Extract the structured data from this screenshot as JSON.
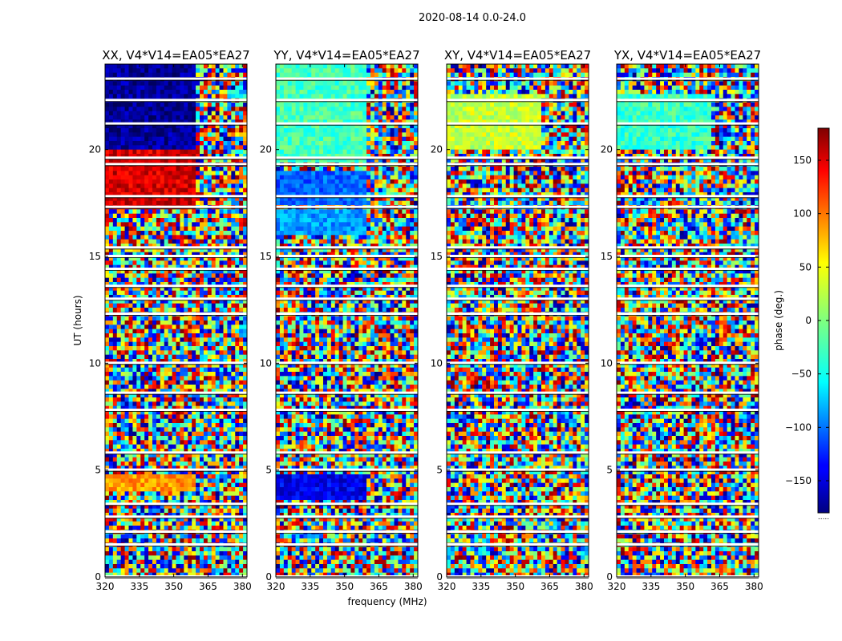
{
  "chart_data": {
    "type": "heatmap",
    "suptitle": "2020-08-14 0.0-24.0",
    "xlabel": "frequency (MHz)",
    "ylabel": "UT (hours)",
    "xlim": [
      320,
      382
    ],
    "ylim": [
      0,
      24
    ],
    "xticks": [
      320,
      335,
      350,
      365,
      380
    ],
    "xtick_labels": [
      "320",
      "335",
      "350",
      "365",
      "380"
    ],
    "yticks": [
      0,
      5,
      10,
      15,
      20
    ],
    "ytick_labels": [
      "0",
      "5",
      "10",
      "15",
      "20"
    ],
    "colorbar": {
      "label": "phase (deg.)",
      "range": [
        -180,
        180
      ],
      "ticks": [
        -150,
        -100,
        -50,
        0,
        50,
        100,
        150
      ],
      "tick_labels": [
        "−150",
        "−100",
        "−50",
        "0",
        "50",
        "100",
        "150"
      ],
      "colormap": "jet",
      "bottom_mark": "....."
    },
    "panels": [
      {
        "title": "XX, V4*V14=EA05*EA27",
        "pol": "XX",
        "coherent_blocks": [
          {
            "t_start": 17.2,
            "t_end": 24.0,
            "f_start": 320,
            "f_end": 360,
            "phase": 150
          },
          {
            "t_start": 20.0,
            "t_end": 24.0,
            "f_start": 320,
            "f_end": 360,
            "phase": -170
          },
          {
            "t_start": 4.0,
            "t_end": 4.8,
            "f_start": 320,
            "f_end": 360,
            "phase": 80
          }
        ]
      },
      {
        "title": "YY, V4*V14=EA05*EA27",
        "pol": "YY",
        "coherent_blocks": [
          {
            "t_start": 19.5,
            "t_end": 24.0,
            "f_start": 320,
            "f_end": 360,
            "phase": -20
          },
          {
            "t_start": 16.0,
            "t_end": 17.2,
            "f_start": 320,
            "f_end": 360,
            "phase": -80
          },
          {
            "t_start": 17.5,
            "t_end": 19.0,
            "f_start": 320,
            "f_end": 360,
            "phase": -100
          },
          {
            "t_start": 3.6,
            "t_end": 4.8,
            "f_start": 320,
            "f_end": 360,
            "phase": -140
          }
        ]
      },
      {
        "title": "XY, V4*V14=EA05*EA27",
        "pol": "XY",
        "coherent_blocks": [
          {
            "t_start": 20.0,
            "t_end": 22.5,
            "f_start": 320,
            "f_end": 362,
            "phase": 25
          }
        ]
      },
      {
        "title": "YX, V4*V14=EA05*EA27",
        "pol": "YX",
        "coherent_blocks": [
          {
            "t_start": 20.0,
            "t_end": 22.5,
            "f_start": 320,
            "f_end": 362,
            "phase": -25
          }
        ]
      }
    ],
    "flagged_time_gaps_hours": [
      0.0,
      1.5,
      2.1,
      2.8,
      3.4,
      5.0,
      5.8,
      7.8,
      8.6,
      10.0,
      12.3,
      13.0,
      13.6,
      14.4,
      15.0,
      15.4,
      17.3,
      17.8,
      19.3,
      19.6,
      21.2,
      22.3,
      23.3
    ]
  }
}
